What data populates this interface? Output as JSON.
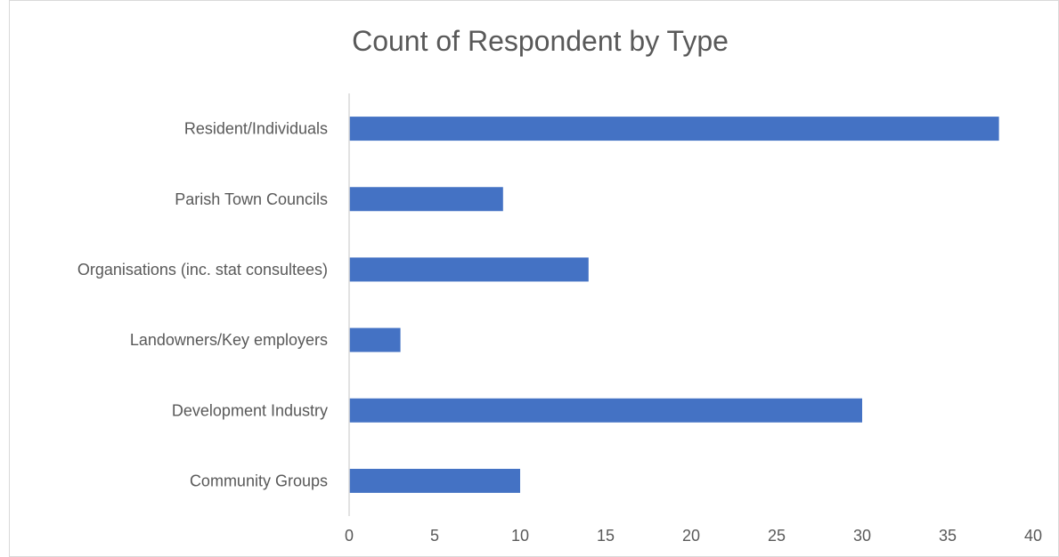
{
  "chart_data": {
    "type": "bar",
    "orientation": "horizontal",
    "title": "Count of Respondent by Type",
    "xlabel": "",
    "ylabel": "",
    "categories": [
      "Resident/Individuals",
      "Parish Town Councils",
      "Organisations (inc. stat consultees)",
      "Landowners/Key employers",
      "Development Industry",
      "Community Groups"
    ],
    "values": [
      38,
      9,
      14,
      3,
      30,
      10
    ],
    "xlim": [
      0,
      40
    ],
    "xticks": [
      "0",
      "5",
      "10",
      "15",
      "20",
      "25",
      "30",
      "35",
      "40"
    ],
    "grid": false,
    "legend": "none",
    "bar_color": "#4472c4"
  }
}
